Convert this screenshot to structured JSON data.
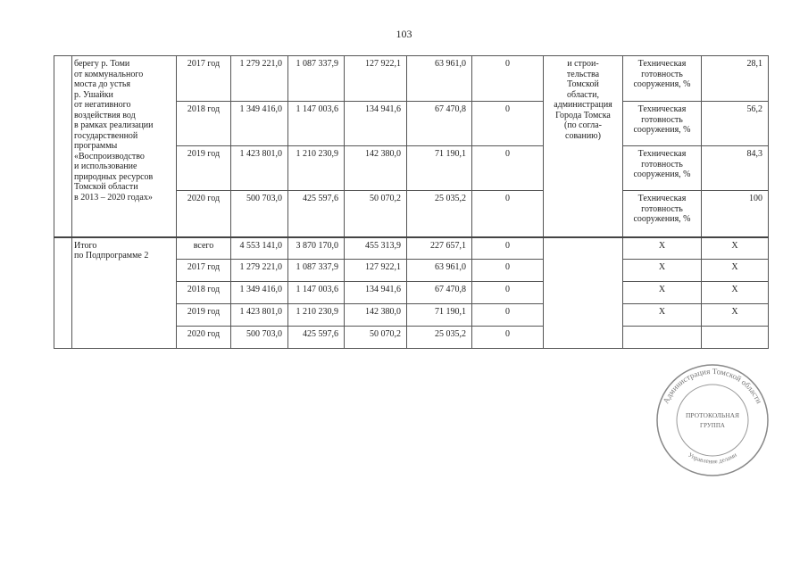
{
  "page_number": "103",
  "section1": {
    "name": "берегу р. Томи\nот коммунального\nмоста до устья\nр. Ушайки\nот негативного\nвоздействия вод\nв рамках реализации\nгосударственной\nпрограммы\n«Воспроизводство\nи использование\nприродных ресурсов\nТомской области\nв 2013 – 2020 годах»",
    "executor": "и строи-\nтельства\nТомской\nобласти,\nадминистрация\nГорода Томска\n(по согла-\nсованию)",
    "rows": [
      {
        "year": "2017 год",
        "total": "1 279 221,0",
        "federal": "1 087 337,9",
        "regional": "127 922,1",
        "local": "63 961,0",
        "other": "0",
        "indicator": "Техническая готовность сооружения, %",
        "value": "28,1"
      },
      {
        "year": "2018 год",
        "total": "1 349 416,0",
        "federal": "1 147 003,6",
        "regional": "134 941,6",
        "local": "67 470,8",
        "other": "0",
        "indicator": "Техническая готовность сооружения, %",
        "value": "56,2"
      },
      {
        "year": "2019 год",
        "total": "1 423 801,0",
        "federal": "1 210 230,9",
        "regional": "142 380,0",
        "local": "71 190,1",
        "other": "0",
        "indicator": "Техническая готовность сооружения, %",
        "value": "84,3"
      },
      {
        "year": "2020 год",
        "total": "500 703,0",
        "federal": "425 597,6",
        "regional": "50 070,2",
        "local": "25 035,2",
        "other": "0",
        "indicator": "Техническая готовность сооружения, %",
        "value": "100"
      }
    ]
  },
  "section2": {
    "name": "Итого\nпо Подпрограмме 2",
    "rows": [
      {
        "year": "всего",
        "total": "4 553 141,0",
        "federal": "3 870 170,0",
        "regional": "455 313,9",
        "local": "227 657,1",
        "other": "0",
        "indicator": "X",
        "value": "X"
      },
      {
        "year": "2017 год",
        "total": "1 279 221,0",
        "federal": "1 087 337,9",
        "regional": "127 922,1",
        "local": "63 961,0",
        "other": "0",
        "indicator": "X",
        "value": "X"
      },
      {
        "year": "2018 год",
        "total": "1 349 416,0",
        "federal": "1 147 003,6",
        "regional": "134 941,6",
        "local": "67 470,8",
        "other": "0",
        "indicator": "X",
        "value": "X"
      },
      {
        "year": "2019 год",
        "total": "1 423 801,0",
        "federal": "1 210 230,9",
        "regional": "142 380,0",
        "local": "71 190,1",
        "other": "0",
        "indicator": "X",
        "value": "X"
      },
      {
        "year": "2020 год",
        "total": "500 703,0",
        "federal": "425 597,6",
        "regional": "50 070,2",
        "local": "25 035,2",
        "other": "0",
        "indicator": "",
        "value": ""
      }
    ]
  },
  "stamp": {
    "ring_text": "Администрация Томской области",
    "center_line1": "ПРОТОКОЛЬНАЯ",
    "center_line2": "ГРУППА",
    "bottom_text": "Управление делами",
    "ink_color": "#777777"
  }
}
